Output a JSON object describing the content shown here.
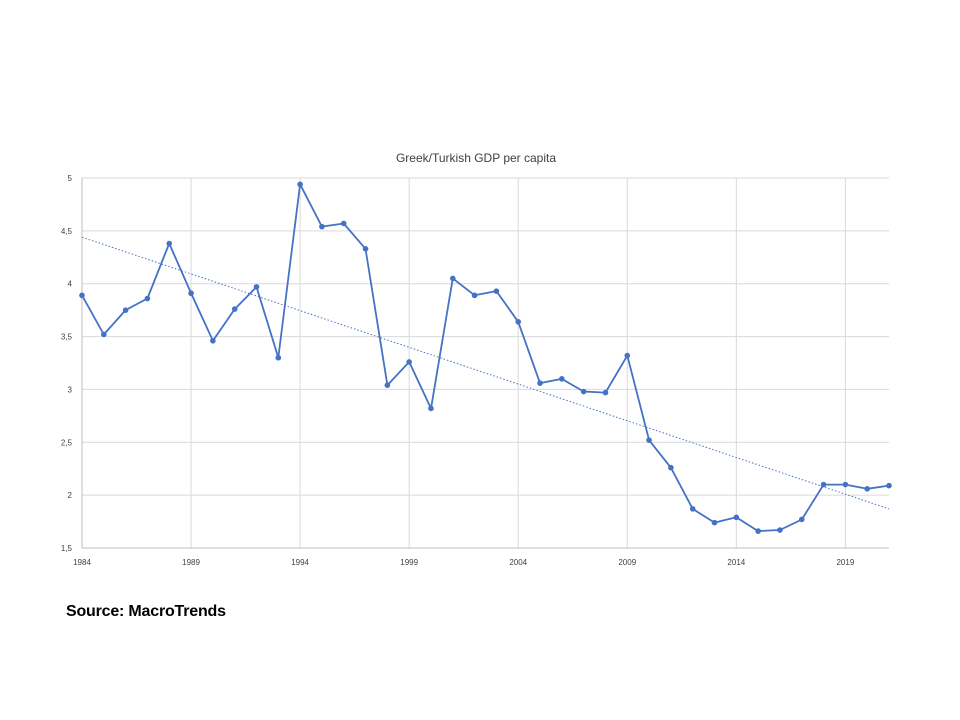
{
  "chart_data": {
    "type": "line",
    "title": "Greek/Turkish GDP per capita",
    "xlabel": "",
    "ylabel": "",
    "x_ticks": [
      "1984",
      "1989",
      "1994",
      "1999",
      "2004",
      "2009",
      "2014",
      "2019"
    ],
    "y_ticks": [
      "1,5",
      "2",
      "2,5",
      "3",
      "3,5",
      "4",
      "4,5",
      "5"
    ],
    "ylim": [
      1.5,
      5
    ],
    "xlim": [
      1984,
      2021
    ],
    "grid": true,
    "legend": "none",
    "series": [
      {
        "x": [
          1984,
          1985,
          1986,
          1987,
          1988,
          1989,
          1990,
          1991,
          1992,
          1993,
          1994,
          1995,
          1996,
          1997,
          1998,
          1999,
          2000,
          2001,
          2002,
          2003,
          2004,
          2005,
          2006,
          2007,
          2008,
          2009,
          2010,
          2011,
          2012,
          2013,
          2014,
          2015,
          2016,
          2017,
          2018,
          2019,
          2020,
          2021
        ],
        "values": [
          3.89,
          3.52,
          3.75,
          3.86,
          4.38,
          3.91,
          3.46,
          3.76,
          3.97,
          3.3,
          4.94,
          4.54,
          4.57,
          4.33,
          3.04,
          3.26,
          2.82,
          4.05,
          3.89,
          3.93,
          3.64,
          3.06,
          3.1,
          2.98,
          2.97,
          3.32,
          2.52,
          2.26,
          1.87,
          1.74,
          1.79,
          1.66,
          1.67,
          1.77,
          2.1,
          2.1,
          2.06,
          2.09
        ],
        "color": "#4472C4"
      }
    ],
    "trendline": {
      "type": "linear",
      "from": 4.44,
      "to": 1.87,
      "color": "#4472C4",
      "style": "dotted"
    }
  },
  "source": "Source: MacroTrends"
}
